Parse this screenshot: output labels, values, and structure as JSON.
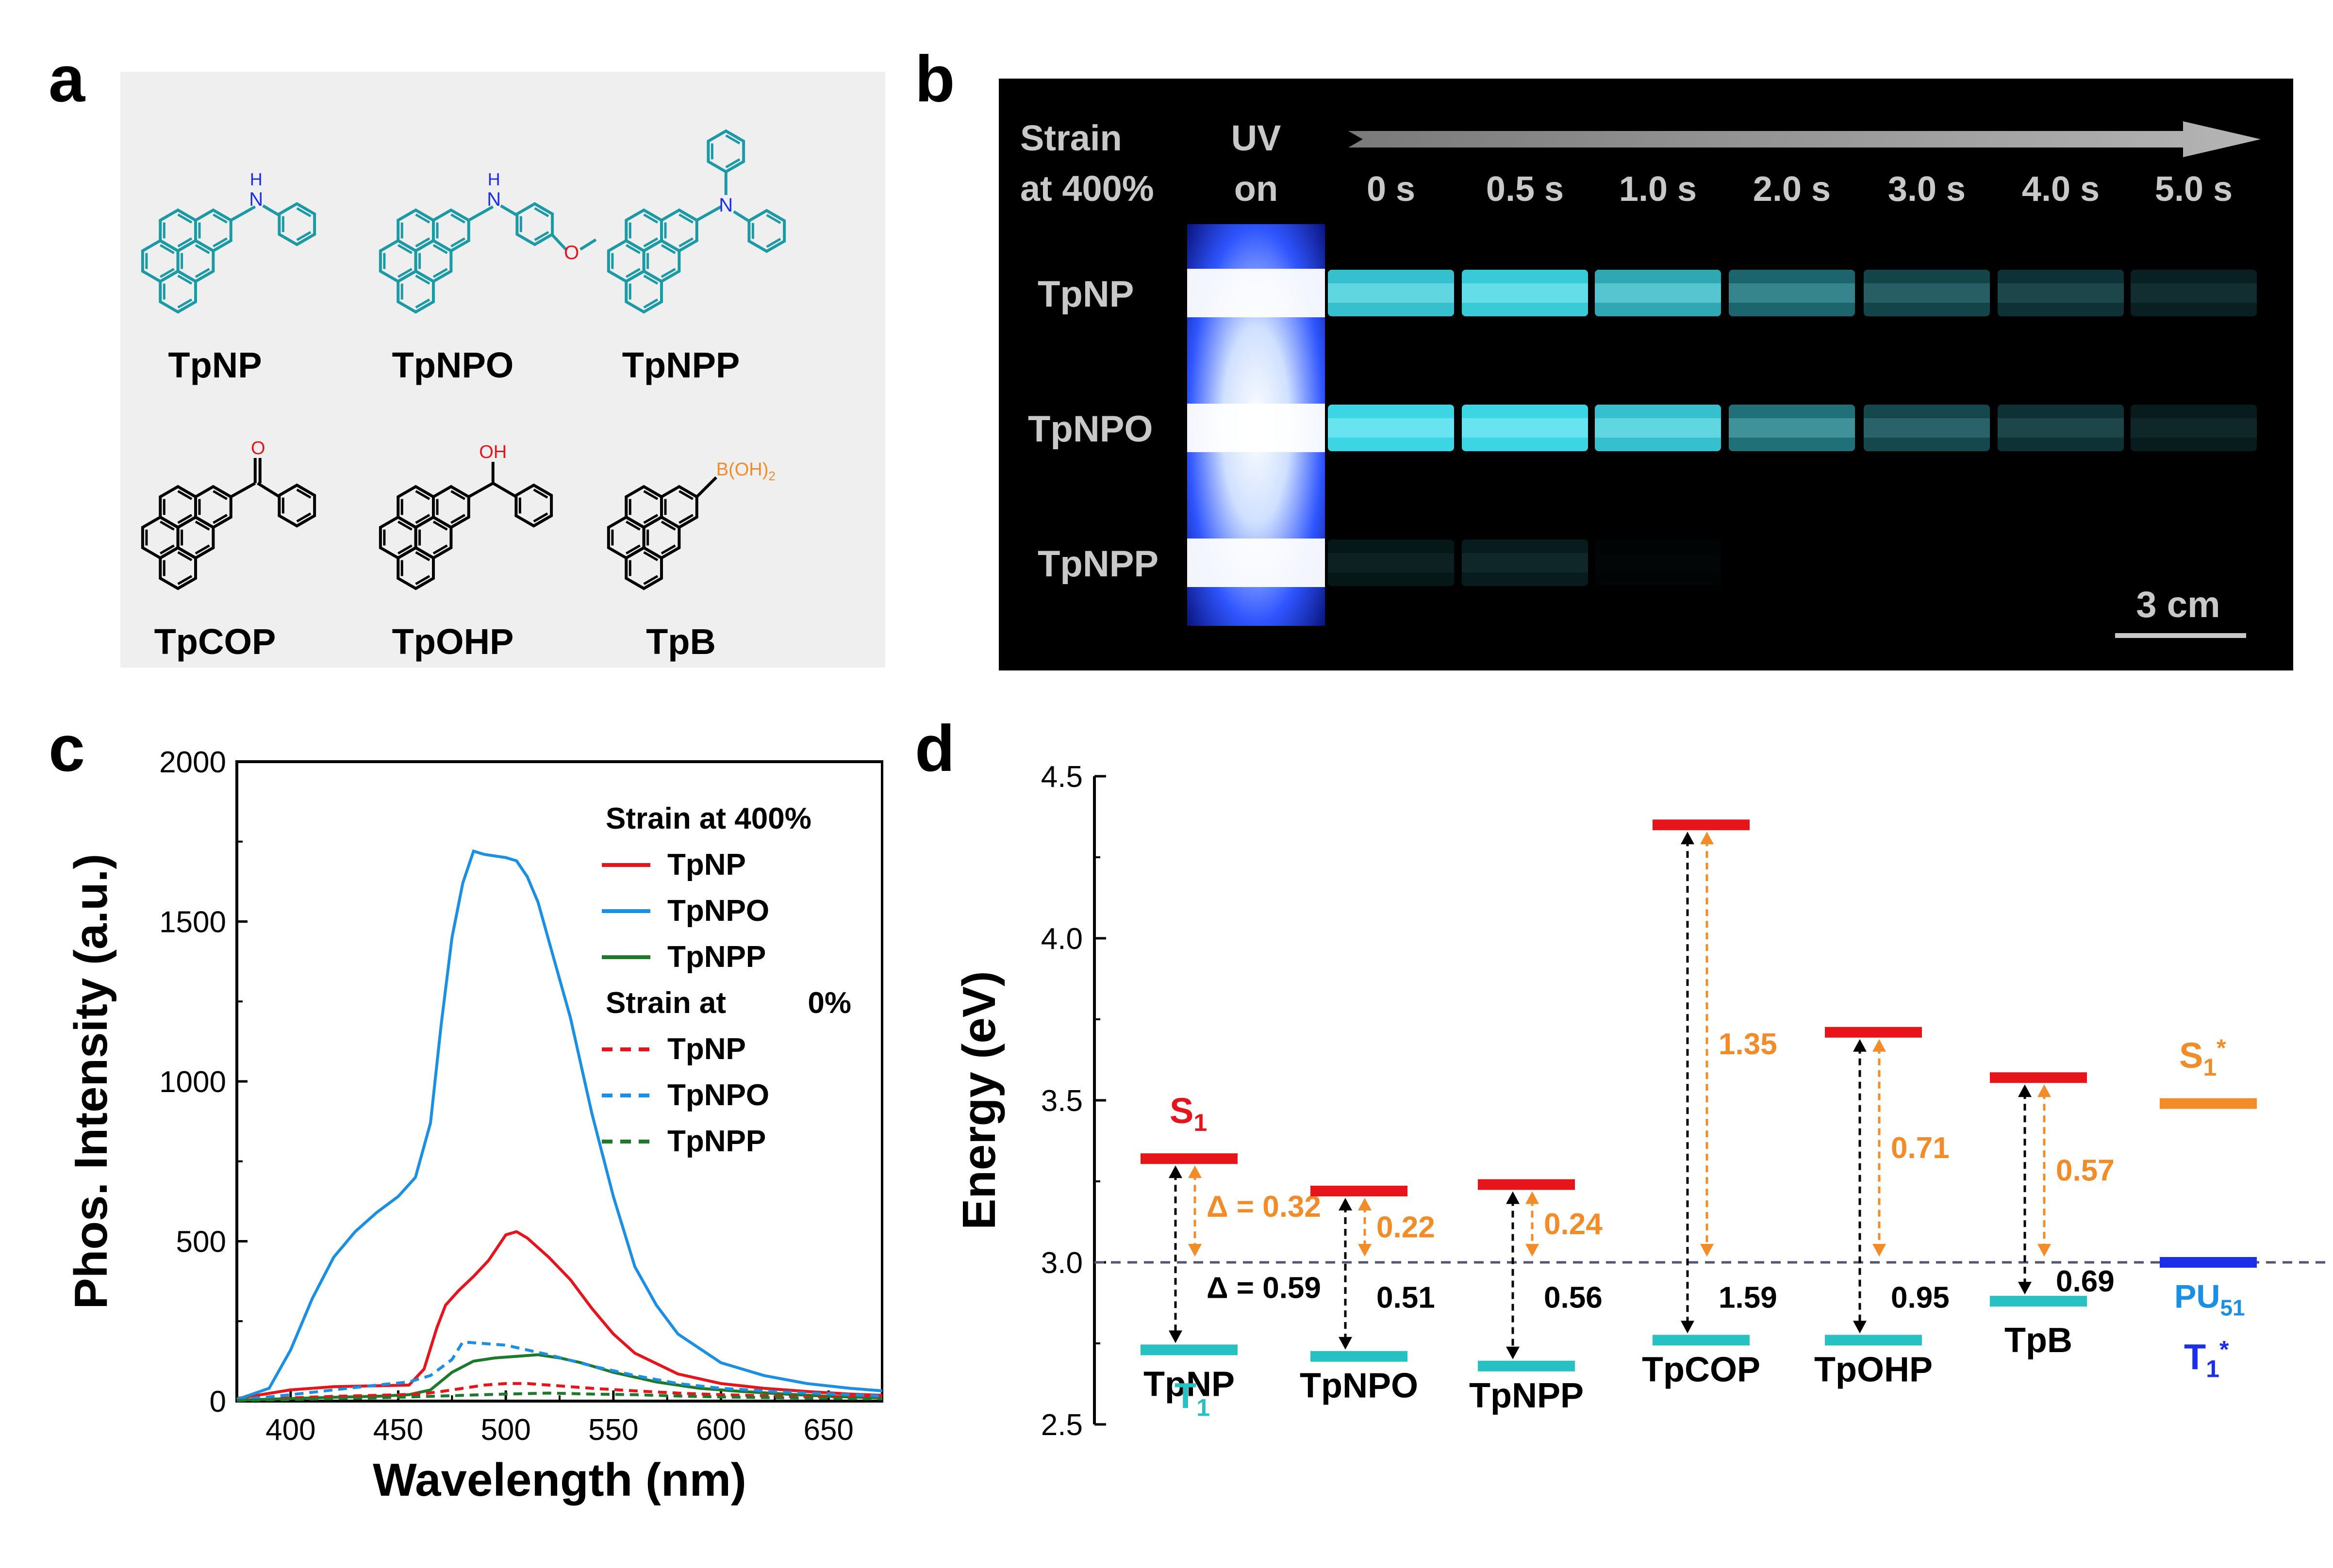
{
  "panel_letters": {
    "a": "a",
    "b": "b",
    "c": "c",
    "d": "d"
  },
  "colors": {
    "teal": "#1b9aa6",
    "red": "#e8141c",
    "blue": "#1a8fe3",
    "green": "#1d7a2a",
    "orange": "#f28c28",
    "cyan": "#27c1c3",
    "dark_blue": "#1b2ee8",
    "panel_a_bg": "#efefef",
    "panel_b_bg": "#000000"
  },
  "panel_a": {
    "molecules": [
      {
        "name": "TpNP",
        "substituent": "N-H phenyl",
        "atom_label": "H\nN",
        "color": "teal"
      },
      {
        "name": "TpNPO",
        "substituent": "N-H methoxyphenyl",
        "atom_label": "H\nN",
        "extra_label": "O",
        "color": "teal"
      },
      {
        "name": "TpNPP",
        "substituent": "N diphenyl",
        "atom_label": "N",
        "color": "teal"
      },
      {
        "name": "TpCOP",
        "substituent": "carbonyl phenyl",
        "atom_label": "O",
        "color": "black"
      },
      {
        "name": "TpOHP",
        "substituent": "hydroxy benzyl",
        "atom_label": "OH",
        "color": "black"
      },
      {
        "name": "TpB",
        "substituent": "boronic acid",
        "atom_label": "B(OH)",
        "atom_sub": "2",
        "color": "black"
      }
    ]
  },
  "panel_b": {
    "corner_label_1": "Strain",
    "corner_label_2": "at 400%",
    "uv_label_1": "UV",
    "uv_label_2": "on",
    "times": [
      "0 s",
      "0.5 s",
      "1.0 s",
      "2.0 s",
      "3.0 s",
      "4.0 s",
      "5.0 s"
    ],
    "rows": [
      {
        "label": "TpNP",
        "intensity": [
          0.85,
          0.9,
          0.75,
          0.45,
          0.3,
          0.22,
          0.14
        ]
      },
      {
        "label": "TpNPO",
        "intensity": [
          0.95,
          0.95,
          0.85,
          0.5,
          0.32,
          0.22,
          0.12
        ]
      },
      {
        "label": "TpNPP",
        "intensity": [
          0.1,
          0.12,
          0.02,
          0.0,
          0.0,
          0.0,
          0.0
        ]
      }
    ],
    "scale_bar": "3 cm"
  },
  "chart_data": [
    {
      "type": "line",
      "panel": "c",
      "xlabel": "Wavelength (nm)",
      "ylabel": "Phos. Intensity (a.u.)",
      "xlim": [
        375,
        675
      ],
      "ylim": [
        0,
        2000
      ],
      "xticks": [
        400,
        450,
        500,
        550,
        600,
        650
      ],
      "yticks": [
        0,
        500,
        1000,
        1500,
        2000
      ],
      "legend_title_1": "Strain at 400%",
      "legend_title_2": "Strain at",
      "legend_title_2_value": "0%",
      "legend_placement": "top-right",
      "series": [
        {
          "name": "TpNP",
          "group": "400%",
          "style": "solid",
          "color": "red",
          "x": [
            375,
            400,
            420,
            440,
            455,
            462,
            468,
            472,
            478,
            485,
            492,
            500,
            505,
            510,
            520,
            530,
            540,
            550,
            560,
            580,
            600,
            620,
            640,
            660,
            675
          ],
          "y": [
            8,
            35,
            45,
            48,
            50,
            100,
            230,
            300,
            345,
            390,
            440,
            520,
            530,
            510,
            450,
            380,
            290,
            210,
            150,
            85,
            55,
            40,
            30,
            22,
            18
          ]
        },
        {
          "name": "TpNPO",
          "group": "400%",
          "style": "solid",
          "color": "blue",
          "x": [
            375,
            390,
            400,
            410,
            420,
            430,
            440,
            450,
            458,
            465,
            470,
            475,
            480,
            485,
            490,
            500,
            505,
            510,
            515,
            520,
            530,
            540,
            550,
            560,
            570,
            580,
            600,
            620,
            640,
            660,
            675
          ],
          "y": [
            5,
            40,
            160,
            320,
            450,
            530,
            590,
            640,
            700,
            870,
            1180,
            1450,
            1620,
            1720,
            1710,
            1700,
            1690,
            1640,
            1560,
            1440,
            1200,
            900,
            640,
            420,
            300,
            210,
            120,
            80,
            55,
            40,
            32
          ]
        },
        {
          "name": "TpNPP",
          "group": "400%",
          "style": "solid",
          "color": "green",
          "x": [
            375,
            400,
            420,
            440,
            455,
            465,
            475,
            485,
            495,
            505,
            515,
            525,
            535,
            550,
            570,
            590,
            610,
            630,
            650,
            675
          ],
          "y": [
            3,
            8,
            12,
            15,
            20,
            35,
            90,
            125,
            135,
            140,
            145,
            135,
            120,
            90,
            60,
            40,
            30,
            22,
            15,
            10
          ]
        },
        {
          "name": "TpNP",
          "group": "0%",
          "style": "dashed",
          "color": "red",
          "x": [
            375,
            400,
            420,
            440,
            460,
            470,
            480,
            490,
            500,
            510,
            520,
            540,
            560,
            580,
            600,
            630,
            660,
            675
          ],
          "y": [
            3,
            10,
            15,
            18,
            22,
            30,
            40,
            50,
            55,
            55,
            50,
            40,
            32,
            25,
            20,
            15,
            12,
            10
          ]
        },
        {
          "name": "TpNPO",
          "group": "0%",
          "style": "dashed",
          "color": "blue",
          "x": [
            375,
            400,
            420,
            440,
            455,
            465,
            475,
            480,
            490,
            500,
            510,
            520,
            540,
            560,
            580,
            600,
            630,
            660,
            675
          ],
          "y": [
            4,
            20,
            35,
            50,
            60,
            80,
            130,
            185,
            180,
            175,
            160,
            145,
            110,
            80,
            55,
            40,
            28,
            20,
            16
          ]
        },
        {
          "name": "TpNPP",
          "group": "0%",
          "style": "dashed",
          "color": "green",
          "x": [
            375,
            400,
            420,
            440,
            460,
            480,
            500,
            520,
            540,
            560,
            580,
            600,
            630,
            660,
            675
          ],
          "y": [
            2,
            5,
            8,
            10,
            14,
            18,
            22,
            25,
            22,
            20,
            16,
            13,
            10,
            8,
            7
          ]
        }
      ]
    },
    {
      "type": "energy-level",
      "panel": "d",
      "ylabel": "Energy (eV)",
      "ylim": [
        2.5,
        4.5
      ],
      "yticks": [
        2.5,
        3.0,
        3.5,
        4.0,
        4.5
      ],
      "reference_line": 3.0,
      "compounds": [
        {
          "name": "TpNP",
          "S1": 3.32,
          "T1": 2.73,
          "delta_orange": "Δ = 0.32",
          "delta_black": "Δ = 0.59"
        },
        {
          "name": "TpNPO",
          "S1": 3.22,
          "T1": 2.71,
          "delta_orange": "0.22",
          "delta_black": "0.51"
        },
        {
          "name": "TpNPP",
          "S1": 3.24,
          "T1": 2.68,
          "delta_orange": "0.24",
          "delta_black": "0.56"
        },
        {
          "name": "TpCOP",
          "S1": 4.35,
          "T1": 2.76,
          "delta_orange": "1.35",
          "delta_black": "1.59"
        },
        {
          "name": "TpOHP",
          "S1": 3.71,
          "T1": 2.76,
          "delta_orange": "0.71",
          "delta_black": "0.95"
        },
        {
          "name": "TpB",
          "S1": 3.57,
          "T1": 2.88,
          "delta_orange": "0.57",
          "delta_black": "0.69"
        }
      ],
      "host": {
        "name": "PU",
        "name_sub": "51",
        "S1": 3.49,
        "T1": 3.0
      },
      "labels": {
        "S1": "S",
        "S1_sub": "1",
        "T1": "T",
        "T1_sub": "1",
        "S1star": "S",
        "S1star_sub": "1",
        "S1star_sup": "*",
        "T1star": "T",
        "T1star_sub": "1",
        "T1star_sup": "*"
      }
    }
  ]
}
